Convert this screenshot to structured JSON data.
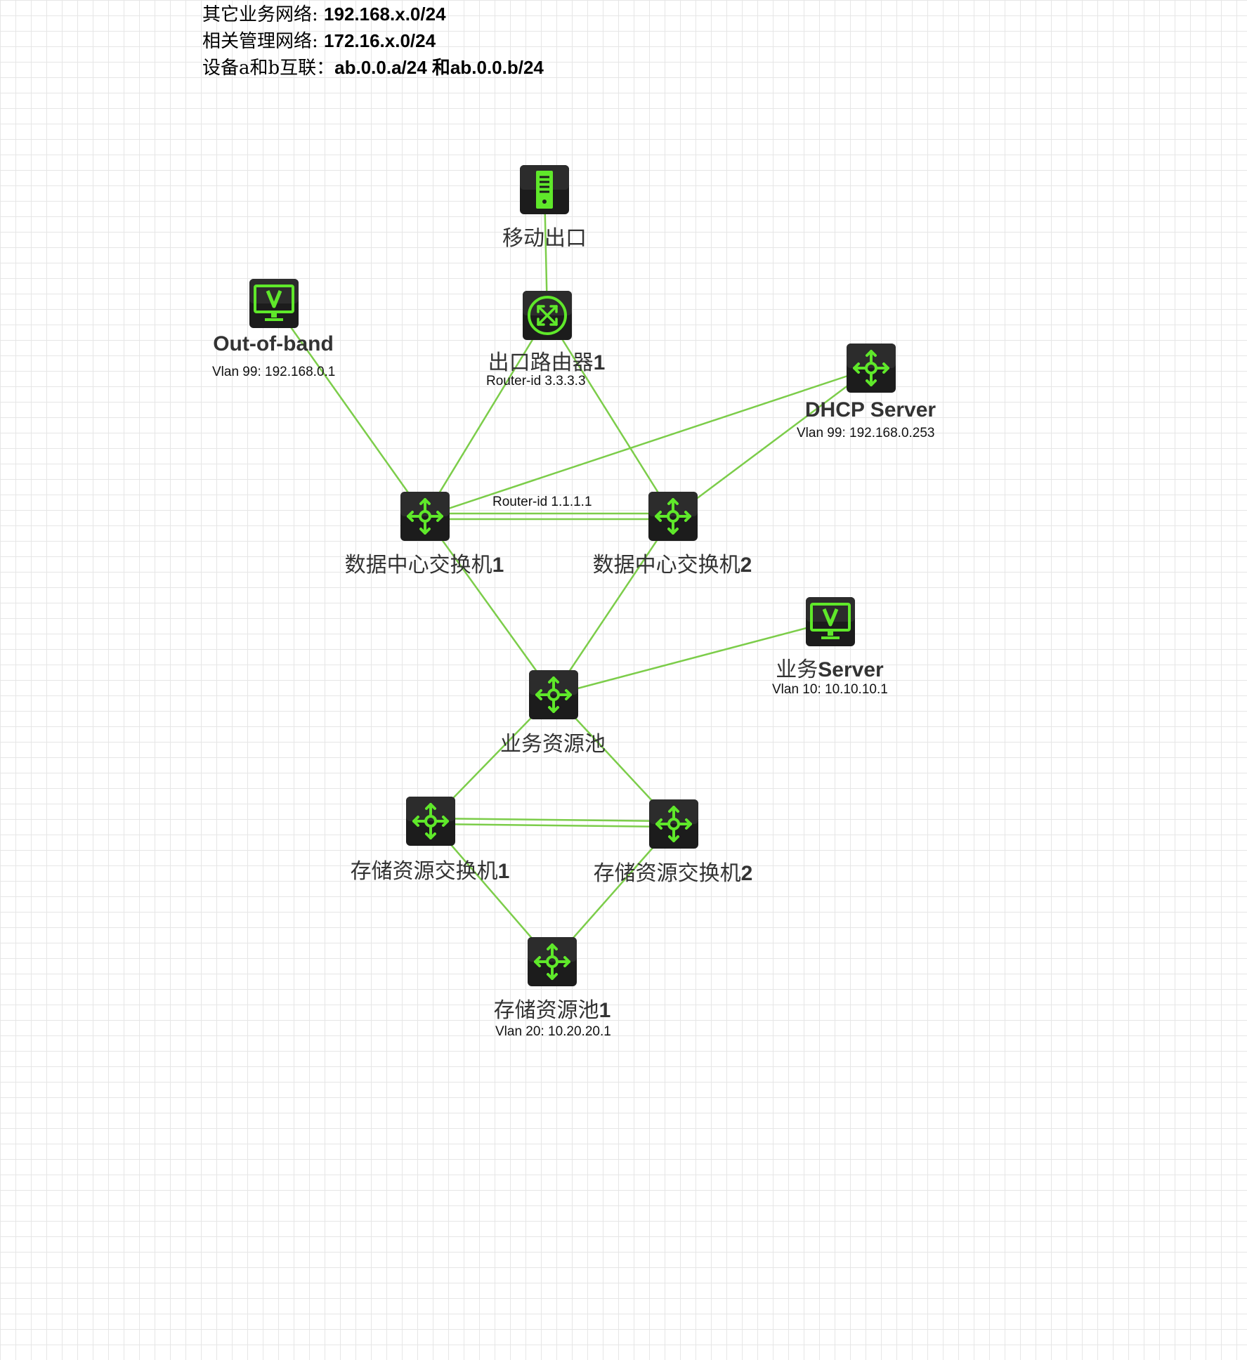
{
  "header": {
    "line1": {
      "zh": "其它业务网络: ",
      "val": "192.168.x.0/24"
    },
    "line2": {
      "zh": "相关管理网络: ",
      "val": "172.16.x.0/24"
    },
    "line3": {
      "zh": "设备a和b互联：",
      "val": "ab.0.0.a/24 和ab.0.0.b/24"
    }
  },
  "colors": {
    "link": "#7ccd4a",
    "icon_body": "#1c1c1c",
    "icon_glyph": "#5fe82a"
  },
  "nodes": {
    "mobile_exit": {
      "label": "移动出口",
      "icon": "server-icon"
    },
    "exit_router": {
      "label_zh": "出口路由器",
      "label_num": "1",
      "sub": "Router-id 3.3.3.3",
      "icon": "router-icon"
    },
    "out_of_band": {
      "label": "Out-of-band",
      "sub": "Vlan 99: 192.168.0.1",
      "icon": "monitor-icon"
    },
    "dhcp_server": {
      "label": "DHCP Server",
      "sub": "Vlan 99: 192.168.0.253",
      "icon": "l3-switch-icon"
    },
    "dc_switch_1": {
      "label_zh": "数据中心交换机",
      "label_num": "1",
      "icon": "l3-switch-icon"
    },
    "dc_switch_2": {
      "label_zh": "数据中心交换机",
      "label_num": "2",
      "icon": "l3-switch-icon"
    },
    "business_pool": {
      "label": "业务资源池",
      "icon": "l3-switch-icon"
    },
    "business_server": {
      "label_zh": "业务",
      "label_en": "Server",
      "sub": "Vlan 10: 10.10.10.1",
      "icon": "monitor-icon"
    },
    "storage_switch_1": {
      "label_zh": "存储资源交换机",
      "label_num": "1",
      "icon": "l3-switch-icon"
    },
    "storage_switch_2": {
      "label_zh": "存储资源交换机",
      "label_num": "2",
      "icon": "l3-switch-icon"
    },
    "storage_pool_1": {
      "label_zh": "存储资源池",
      "label_num": "1",
      "sub": "Vlan 20: 10.20.20.1",
      "icon": "l3-switch-icon"
    }
  },
  "link_labels": {
    "dc_interconnect": "Router-id 1.1.1.1"
  },
  "links": [
    {
      "from": "mobile_exit",
      "to": "exit_router",
      "double": false
    },
    {
      "from": "exit_router",
      "to": "dc_switch_1",
      "double": false
    },
    {
      "from": "exit_router",
      "to": "dc_switch_2",
      "double": false
    },
    {
      "from": "out_of_band",
      "to": "dc_switch_1",
      "double": false
    },
    {
      "from": "dhcp_server",
      "to": "dc_switch_1",
      "double": false
    },
    {
      "from": "dhcp_server",
      "to": "dc_switch_2",
      "double": false
    },
    {
      "from": "dc_switch_1",
      "to": "dc_switch_2",
      "double": true
    },
    {
      "from": "dc_switch_1",
      "to": "business_pool",
      "double": false
    },
    {
      "from": "dc_switch_2",
      "to": "business_pool",
      "double": false
    },
    {
      "from": "business_server",
      "to": "business_pool",
      "double": false
    },
    {
      "from": "business_pool",
      "to": "storage_switch_1",
      "double": false
    },
    {
      "from": "business_pool",
      "to": "storage_switch_2",
      "double": false
    },
    {
      "from": "storage_switch_1",
      "to": "storage_switch_2",
      "double": true
    },
    {
      "from": "storage_switch_1",
      "to": "storage_pool_1",
      "double": false
    },
    {
      "from": "storage_switch_2",
      "to": "storage_pool_1",
      "double": false
    }
  ]
}
